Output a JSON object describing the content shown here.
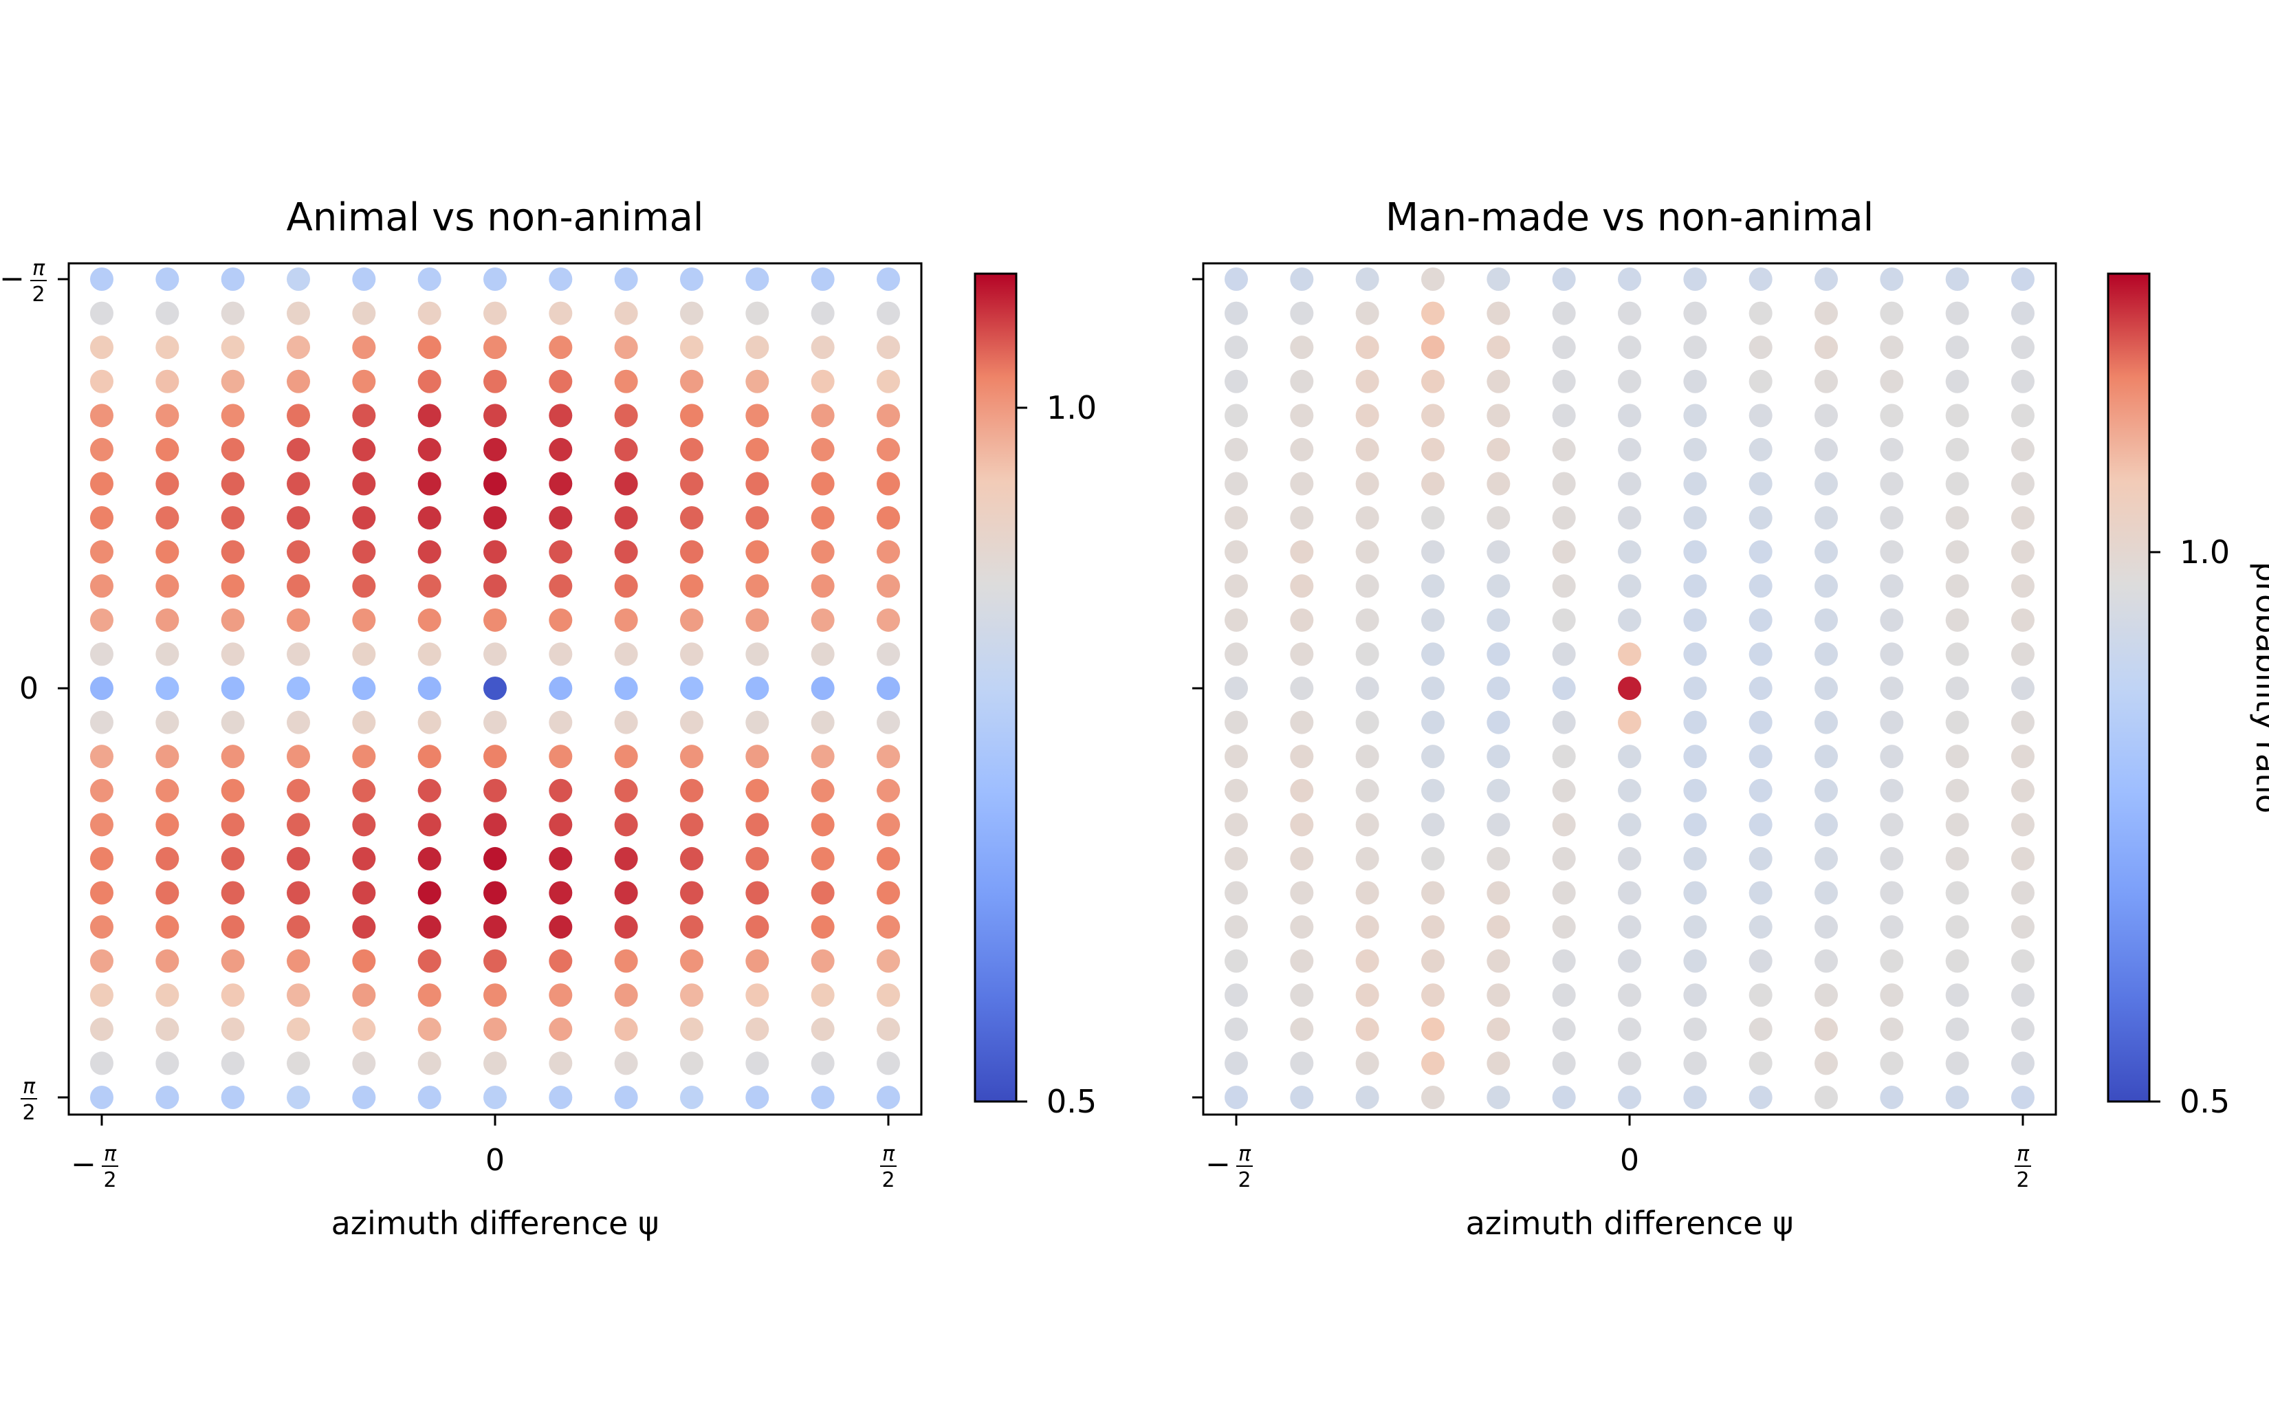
{
  "colorbar_ticks": [
    "1.0",
    "0.5"
  ],
  "colorbar_label": "probability ratio",
  "xtick_labels": {
    "left": "−π/2",
    "mid": "0",
    "right": "π/2"
  },
  "ytick_labels": {
    "top": "−π/2",
    "mid": "0",
    "bottom": "π/2"
  },
  "chart_data": [
    {
      "type": "scatter",
      "title": "Animal vs non-animal",
      "xlabel": "azimuth difference ψ",
      "ylabel": "",
      "x": [
        "-π/2",
        "-5π/12",
        "-π/3",
        "-π/4",
        "-π/6",
        "-π/12",
        "0",
        "π/12",
        "π/6",
        "π/4",
        "π/3",
        "5π/12",
        "π/2"
      ],
      "y_rows": 25,
      "y_range": [
        "-π/2",
        "π/2"
      ],
      "colormap": "coolwarm",
      "color_range": [
        0.5,
        1.15
      ],
      "values": [
        [
          0.8,
          0.8,
          0.8,
          0.83,
          0.8,
          0.8,
          0.8,
          0.8,
          0.8,
          0.8,
          0.8,
          0.8,
          0.8
        ],
        [
          0.9,
          0.9,
          0.92,
          0.95,
          0.95,
          0.96,
          0.96,
          0.96,
          0.96,
          0.93,
          0.91,
          0.9,
          0.9
        ],
        [
          0.98,
          0.98,
          0.98,
          1.01,
          1.05,
          1.07,
          1.06,
          1.06,
          1.03,
          0.98,
          0.97,
          0.96,
          0.96
        ],
        [
          0.99,
          1.0,
          1.02,
          1.04,
          1.06,
          1.08,
          1.08,
          1.08,
          1.06,
          1.04,
          1.02,
          0.99,
          0.98
        ],
        [
          1.05,
          1.05,
          1.06,
          1.08,
          1.1,
          1.12,
          1.11,
          1.11,
          1.09,
          1.07,
          1.06,
          1.04,
          1.04
        ],
        [
          1.06,
          1.07,
          1.08,
          1.1,
          1.11,
          1.12,
          1.13,
          1.12,
          1.1,
          1.08,
          1.07,
          1.06,
          1.06
        ],
        [
          1.07,
          1.08,
          1.09,
          1.1,
          1.11,
          1.13,
          1.14,
          1.13,
          1.12,
          1.09,
          1.08,
          1.07,
          1.07
        ],
        [
          1.07,
          1.08,
          1.09,
          1.1,
          1.11,
          1.12,
          1.13,
          1.12,
          1.11,
          1.09,
          1.08,
          1.07,
          1.07
        ],
        [
          1.06,
          1.07,
          1.08,
          1.09,
          1.1,
          1.11,
          1.11,
          1.1,
          1.1,
          1.08,
          1.07,
          1.06,
          1.05
        ],
        [
          1.05,
          1.06,
          1.07,
          1.08,
          1.09,
          1.09,
          1.1,
          1.09,
          1.08,
          1.07,
          1.06,
          1.05,
          1.04
        ],
        [
          1.03,
          1.04,
          1.04,
          1.05,
          1.05,
          1.06,
          1.06,
          1.06,
          1.05,
          1.04,
          1.04,
          1.03,
          1.03
        ],
        [
          0.92,
          0.93,
          0.94,
          0.94,
          0.95,
          0.95,
          0.94,
          0.94,
          0.94,
          0.94,
          0.93,
          0.93,
          0.92
        ],
        [
          0.72,
          0.74,
          0.73,
          0.74,
          0.73,
          0.72,
          0.52,
          0.72,
          0.73,
          0.74,
          0.73,
          0.72,
          0.72
        ],
        [
          0.92,
          0.93,
          0.93,
          0.94,
          0.95,
          0.95,
          0.94,
          0.94,
          0.94,
          0.94,
          0.93,
          0.93,
          0.92
        ],
        [
          1.03,
          1.04,
          1.05,
          1.05,
          1.06,
          1.07,
          1.07,
          1.06,
          1.06,
          1.05,
          1.04,
          1.03,
          1.03
        ],
        [
          1.05,
          1.06,
          1.07,
          1.08,
          1.09,
          1.1,
          1.1,
          1.1,
          1.09,
          1.08,
          1.07,
          1.06,
          1.05
        ],
        [
          1.06,
          1.07,
          1.08,
          1.09,
          1.1,
          1.11,
          1.12,
          1.11,
          1.1,
          1.09,
          1.08,
          1.07,
          1.06
        ],
        [
          1.07,
          1.08,
          1.09,
          1.1,
          1.11,
          1.13,
          1.14,
          1.13,
          1.12,
          1.1,
          1.08,
          1.07,
          1.07
        ],
        [
          1.07,
          1.08,
          1.09,
          1.1,
          1.11,
          1.14,
          1.14,
          1.13,
          1.12,
          1.1,
          1.09,
          1.08,
          1.07
        ],
        [
          1.06,
          1.07,
          1.08,
          1.09,
          1.11,
          1.13,
          1.13,
          1.13,
          1.11,
          1.09,
          1.08,
          1.07,
          1.06
        ],
        [
          1.03,
          1.04,
          1.04,
          1.05,
          1.07,
          1.09,
          1.09,
          1.08,
          1.06,
          1.05,
          1.04,
          1.03,
          1.02
        ],
        [
          0.98,
          0.98,
          0.99,
          1.01,
          1.04,
          1.06,
          1.06,
          1.05,
          1.04,
          1.01,
          0.99,
          0.98,
          0.98
        ],
        [
          0.95,
          0.95,
          0.96,
          0.98,
          0.99,
          1.02,
          1.03,
          1.03,
          1.0,
          0.97,
          0.96,
          0.95,
          0.95
        ],
        [
          0.9,
          0.9,
          0.9,
          0.91,
          0.92,
          0.93,
          0.93,
          0.93,
          0.92,
          0.91,
          0.9,
          0.9,
          0.9
        ],
        [
          0.8,
          0.8,
          0.8,
          0.82,
          0.8,
          0.8,
          0.81,
          0.8,
          0.8,
          0.82,
          0.8,
          0.8,
          0.8
        ]
      ]
    },
    {
      "type": "scatter",
      "title": "Man-made vs non-animal",
      "xlabel": "azimuth difference ψ",
      "ylabel": "",
      "x": [
        "-π/2",
        "-5π/12",
        "-π/3",
        "-π/4",
        "-π/6",
        "-π/12",
        "0",
        "π/12",
        "π/6",
        "π/4",
        "π/3",
        "5π/12",
        "π/2"
      ],
      "y_rows": 25,
      "y_range": [
        "-π/2",
        "π/2"
      ],
      "colormap": "coolwarm",
      "color_range": [
        0.5,
        1.3
      ],
      "values": [
        [
          0.94,
          0.95,
          0.96,
          1.02,
          0.96,
          0.95,
          0.95,
          0.95,
          0.95,
          0.95,
          0.95,
          0.95,
          0.94
        ],
        [
          0.98,
          0.99,
          1.02,
          1.1,
          1.03,
          0.99,
          0.99,
          0.99,
          1.0,
          1.02,
          1.0,
          0.99,
          0.98
        ],
        [
          0.99,
          1.02,
          1.06,
          1.12,
          1.05,
          0.99,
          0.99,
          0.99,
          1.01,
          1.03,
          1.01,
          0.99,
          0.99
        ],
        [
          0.99,
          1.01,
          1.05,
          1.07,
          1.03,
          0.99,
          0.99,
          0.98,
          1.0,
          1.01,
          1.01,
          0.99,
          0.99
        ],
        [
          1.0,
          1.02,
          1.05,
          1.05,
          1.03,
          0.99,
          0.98,
          0.97,
          0.98,
          0.99,
          1.0,
          1.0,
          1.0
        ],
        [
          1.01,
          1.02,
          1.04,
          1.05,
          1.04,
          1.01,
          0.98,
          0.97,
          0.97,
          0.98,
          0.99,
          1.0,
          1.01
        ],
        [
          1.01,
          1.02,
          1.03,
          1.04,
          1.03,
          1.01,
          0.98,
          0.96,
          0.96,
          0.97,
          0.99,
          1.0,
          1.01
        ],
        [
          1.02,
          1.02,
          1.02,
          1.0,
          1.01,
          1.01,
          0.98,
          0.96,
          0.96,
          0.97,
          0.99,
          1.01,
          1.02
        ],
        [
          1.02,
          1.04,
          1.02,
          0.98,
          0.98,
          1.02,
          0.97,
          0.95,
          0.95,
          0.96,
          0.99,
          1.01,
          1.02
        ],
        [
          1.02,
          1.04,
          1.01,
          0.97,
          0.97,
          1.01,
          0.97,
          0.95,
          0.95,
          0.96,
          0.98,
          1.01,
          1.02
        ],
        [
          1.02,
          1.03,
          1.01,
          0.97,
          0.96,
          1.0,
          0.97,
          0.95,
          0.95,
          0.96,
          0.98,
          1.01,
          1.02
        ],
        [
          1.01,
          1.02,
          1.0,
          0.96,
          0.95,
          0.98,
          1.1,
          0.95,
          0.95,
          0.96,
          0.98,
          1.0,
          1.01
        ],
        [
          0.98,
          0.99,
          0.98,
          0.96,
          0.95,
          0.95,
          1.28,
          0.95,
          0.95,
          0.96,
          0.98,
          0.99,
          0.98
        ],
        [
          1.01,
          1.02,
          1.0,
          0.96,
          0.95,
          0.98,
          1.1,
          0.95,
          0.95,
          0.96,
          0.98,
          1.0,
          1.01
        ],
        [
          1.02,
          1.03,
          1.01,
          0.97,
          0.96,
          1.0,
          0.97,
          0.95,
          0.95,
          0.96,
          0.98,
          1.01,
          1.02
        ],
        [
          1.02,
          1.04,
          1.01,
          0.97,
          0.97,
          1.01,
          0.97,
          0.95,
          0.95,
          0.96,
          0.98,
          1.01,
          1.02
        ],
        [
          1.02,
          1.04,
          1.02,
          0.98,
          0.98,
          1.02,
          0.97,
          0.95,
          0.95,
          0.96,
          0.99,
          1.01,
          1.02
        ],
        [
          1.02,
          1.03,
          1.02,
          1.0,
          1.01,
          1.01,
          0.98,
          0.96,
          0.96,
          0.97,
          0.99,
          1.01,
          1.02
        ],
        [
          1.01,
          1.02,
          1.03,
          1.03,
          1.03,
          1.01,
          0.98,
          0.96,
          0.96,
          0.97,
          0.99,
          1.0,
          1.01
        ],
        [
          1.01,
          1.02,
          1.04,
          1.04,
          1.04,
          1.01,
          0.98,
          0.97,
          0.97,
          0.98,
          0.99,
          1.0,
          1.01
        ],
        [
          1.0,
          1.02,
          1.05,
          1.04,
          1.03,
          0.99,
          0.98,
          0.97,
          0.98,
          0.99,
          1.0,
          1.0,
          1.0
        ],
        [
          0.99,
          1.01,
          1.05,
          1.05,
          1.03,
          0.99,
          0.99,
          0.98,
          1.0,
          1.01,
          1.01,
          0.99,
          0.99
        ],
        [
          0.99,
          1.02,
          1.06,
          1.1,
          1.04,
          0.99,
          0.99,
          0.99,
          1.01,
          1.03,
          1.01,
          0.99,
          0.99
        ],
        [
          0.98,
          0.99,
          1.02,
          1.09,
          1.03,
          0.99,
          0.99,
          0.99,
          1.0,
          1.02,
          1.0,
          0.99,
          0.98
        ],
        [
          0.94,
          0.95,
          0.96,
          1.02,
          0.96,
          0.95,
          0.95,
          0.95,
          0.95,
          1.0,
          0.95,
          0.95,
          0.94
        ]
      ]
    }
  ]
}
